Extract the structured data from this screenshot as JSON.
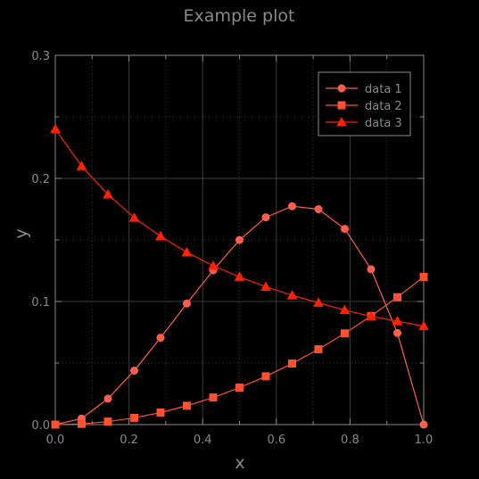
{
  "chart_data": {
    "type": "line",
    "title": "Example plot",
    "xlabel": "x",
    "ylabel": "y",
    "xlim": [
      0,
      1
    ],
    "ylim": [
      0,
      0.3
    ],
    "xticks": [
      0,
      0.2,
      0.4,
      0.6,
      0.8,
      1
    ],
    "xtick_labels": [
      "0.0",
      "0.2",
      "0.4",
      "0.6",
      "0.8",
      "1.0"
    ],
    "yticks": [
      0,
      0.1,
      0.2,
      0.3
    ],
    "ytick_labels": [
      "0.0",
      "0.1",
      "0.2",
      "0.3"
    ],
    "grid": true,
    "legend_position": "top-right",
    "x": [
      0,
      0.0714,
      0.1429,
      0.2143,
      0.2857,
      0.3571,
      0.4286,
      0.5,
      0.5714,
      0.6429,
      0.7143,
      0.7857,
      0.8571,
      0.9286,
      1.0
    ],
    "series": [
      {
        "name": "data 1",
        "marker": "circle",
        "color": "#ff5e4d",
        "values": [
          0,
          0.0049,
          0.0211,
          0.0438,
          0.0706,
          0.0984,
          0.1254,
          0.15,
          0.1684,
          0.1774,
          0.175,
          0.159,
          0.1262,
          0.0744,
          0
        ]
      },
      {
        "name": "data 2",
        "marker": "square",
        "color": "#ff5030",
        "values": [
          0,
          0.0006,
          0.0024,
          0.0055,
          0.0098,
          0.0153,
          0.022,
          0.03,
          0.0392,
          0.0496,
          0.0612,
          0.0741,
          0.0882,
          0.1035,
          0.12
        ]
      },
      {
        "name": "data 3",
        "marker": "triangle",
        "color": "#ff2200",
        "values": [
          0.24,
          0.21,
          0.187,
          0.168,
          0.153,
          0.14,
          0.129,
          0.12,
          0.112,
          0.105,
          0.099,
          0.093,
          0.088,
          0.084,
          0.08
        ]
      }
    ]
  },
  "colors": {
    "background": "#000000",
    "axes": "#8a8a8a",
    "grid": "#3c3c3c",
    "text": "#8a8a8a"
  }
}
